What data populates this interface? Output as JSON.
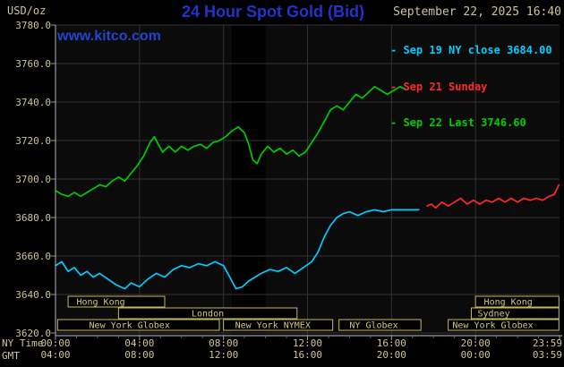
{
  "header": {
    "units": "USD/oz",
    "title": "24 Hour Spot Gold (Bid)",
    "datetime": "September 22, 2025 16:40",
    "watermark": "www.kitco.com",
    "legend_marker": "-",
    "legend": [
      {
        "label": "Sep 19 NY close 3684.00",
        "color": "#00CCFF"
      },
      {
        "label": "Sep 21 Sunday",
        "color": "#FF2A2A"
      },
      {
        "label": "Sep 22 Last 3746.60",
        "color": "#00CC00"
      }
    ]
  },
  "axes": {
    "ny_time_label": "NY Time",
    "gmt_label": "GMT"
  },
  "chart_data": {
    "type": "line",
    "title": "24 Hour Spot Gold (Bid)",
    "ylabel": "USD/oz",
    "xlim": [
      0,
      24
    ],
    "ylim": [
      3620,
      3780
    ],
    "grid": true,
    "legend_position": "top-right",
    "colors": {
      "grid": "#333333",
      "axis": "#999999",
      "tick_text": "#CDC49A",
      "session_box": "#C8B858",
      "plot_bg": "#0B0B0B"
    },
    "y_ticks": [
      {
        "value": 3780,
        "label": "3780.0"
      },
      {
        "value": 3760,
        "label": "3760.0"
      },
      {
        "value": 3740,
        "label": "3740.0"
      },
      {
        "value": 3720,
        "label": "3720.0"
      },
      {
        "value": 3700,
        "label": "3700.0"
      },
      {
        "value": 3680,
        "label": "3680.0"
      },
      {
        "value": 3660,
        "label": "3660.0"
      },
      {
        "value": 3640,
        "label": "3640.0"
      },
      {
        "value": 3620,
        "label": "3620.0"
      }
    ],
    "x_ticks": [
      {
        "hour": 0,
        "ny": "00:00",
        "gmt": "04:00"
      },
      {
        "hour": 4,
        "ny": "04:00",
        "gmt": "08:00"
      },
      {
        "hour": 8,
        "ny": "08:00",
        "gmt": "12:00"
      },
      {
        "hour": 12,
        "ny": "12:00",
        "gmt": "16:00"
      },
      {
        "hour": 16,
        "ny": "16:00",
        "gmt": "20:00"
      },
      {
        "hour": 20,
        "ny": "20:00",
        "gmt": "00:00"
      },
      {
        "hour": 24,
        "ny": "23:59",
        "gmt": "03:59"
      }
    ],
    "shade_bands": [
      {
        "start": 8.4,
        "end": 10.0,
        "color": "#000000"
      }
    ],
    "series": [
      {
        "name": "Sep 19 NY close",
        "color": "#00CCFF",
        "close": 3684.0,
        "points": [
          [
            0.0,
            3655
          ],
          [
            0.3,
            3657
          ],
          [
            0.6,
            3652
          ],
          [
            0.9,
            3654
          ],
          [
            1.2,
            3650
          ],
          [
            1.5,
            3652
          ],
          [
            1.8,
            3649
          ],
          [
            2.1,
            3651
          ],
          [
            2.5,
            3648
          ],
          [
            2.9,
            3645
          ],
          [
            3.3,
            3643
          ],
          [
            3.6,
            3646
          ],
          [
            4.0,
            3644
          ],
          [
            4.4,
            3648
          ],
          [
            4.8,
            3651
          ],
          [
            5.2,
            3649
          ],
          [
            5.6,
            3653
          ],
          [
            6.0,
            3655
          ],
          [
            6.4,
            3654
          ],
          [
            6.8,
            3656
          ],
          [
            7.2,
            3655
          ],
          [
            7.6,
            3657
          ],
          [
            8.0,
            3655
          ],
          [
            8.3,
            3649
          ],
          [
            8.6,
            3643
          ],
          [
            8.9,
            3644
          ],
          [
            9.2,
            3647
          ],
          [
            9.5,
            3649
          ],
          [
            9.8,
            3651
          ],
          [
            10.2,
            3653
          ],
          [
            10.6,
            3652
          ],
          [
            11.0,
            3654
          ],
          [
            11.4,
            3651
          ],
          [
            11.8,
            3654
          ],
          [
            12.2,
            3657
          ],
          [
            12.5,
            3662
          ],
          [
            12.8,
            3670
          ],
          [
            13.1,
            3676
          ],
          [
            13.4,
            3680
          ],
          [
            13.7,
            3682
          ],
          [
            14.0,
            3683
          ],
          [
            14.4,
            3681
          ],
          [
            14.8,
            3683
          ],
          [
            15.2,
            3684
          ],
          [
            15.6,
            3683
          ],
          [
            16.0,
            3684
          ],
          [
            16.5,
            3684
          ],
          [
            17.0,
            3684
          ],
          [
            17.3,
            3684
          ]
        ]
      },
      {
        "name": "Sep 21 Sunday",
        "color": "#FF2A2A",
        "points": [
          [
            17.7,
            3686
          ],
          [
            17.9,
            3687
          ],
          [
            18.1,
            3685
          ],
          [
            18.4,
            3688
          ],
          [
            18.7,
            3686
          ],
          [
            19.0,
            3688
          ],
          [
            19.3,
            3690
          ],
          [
            19.6,
            3687
          ],
          [
            19.9,
            3689
          ],
          [
            20.2,
            3687
          ],
          [
            20.5,
            3689
          ],
          [
            20.8,
            3688
          ],
          [
            21.1,
            3690
          ],
          [
            21.4,
            3688
          ],
          [
            21.7,
            3690
          ],
          [
            22.0,
            3688
          ],
          [
            22.3,
            3690
          ],
          [
            22.6,
            3689
          ],
          [
            22.9,
            3690
          ],
          [
            23.2,
            3689
          ],
          [
            23.5,
            3691
          ],
          [
            23.75,
            3692
          ],
          [
            23.97,
            3697
          ]
        ]
      },
      {
        "name": "Sep 22 Last",
        "color": "#00CC00",
        "last": 3746.6,
        "points": [
          [
            0.0,
            3694
          ],
          [
            0.3,
            3692
          ],
          [
            0.6,
            3691
          ],
          [
            0.9,
            3693
          ],
          [
            1.2,
            3691
          ],
          [
            1.5,
            3693
          ],
          [
            1.8,
            3695
          ],
          [
            2.1,
            3697
          ],
          [
            2.4,
            3696
          ],
          [
            2.7,
            3699
          ],
          [
            3.0,
            3701
          ],
          [
            3.3,
            3699
          ],
          [
            3.6,
            3703
          ],
          [
            3.9,
            3707
          ],
          [
            4.2,
            3712
          ],
          [
            4.5,
            3719
          ],
          [
            4.7,
            3722
          ],
          [
            4.9,
            3718
          ],
          [
            5.1,
            3714
          ],
          [
            5.4,
            3717
          ],
          [
            5.7,
            3714
          ],
          [
            6.0,
            3717
          ],
          [
            6.3,
            3715
          ],
          [
            6.6,
            3717
          ],
          [
            6.9,
            3718
          ],
          [
            7.2,
            3716
          ],
          [
            7.5,
            3719
          ],
          [
            7.8,
            3720
          ],
          [
            8.1,
            3722
          ],
          [
            8.4,
            3725
          ],
          [
            8.7,
            3727
          ],
          [
            9.0,
            3724
          ],
          [
            9.2,
            3718
          ],
          [
            9.4,
            3710
          ],
          [
            9.6,
            3708
          ],
          [
            9.8,
            3713
          ],
          [
            10.1,
            3717
          ],
          [
            10.4,
            3714
          ],
          [
            10.7,
            3716
          ],
          [
            11.0,
            3713
          ],
          [
            11.3,
            3715
          ],
          [
            11.6,
            3712
          ],
          [
            11.9,
            3714
          ],
          [
            12.2,
            3719
          ],
          [
            12.5,
            3724
          ],
          [
            12.8,
            3730
          ],
          [
            13.1,
            3736
          ],
          [
            13.4,
            3738
          ],
          [
            13.7,
            3736
          ],
          [
            14.0,
            3740
          ],
          [
            14.3,
            3744
          ],
          [
            14.6,
            3742
          ],
          [
            14.9,
            3745
          ],
          [
            15.2,
            3748
          ],
          [
            15.5,
            3746
          ],
          [
            15.8,
            3744
          ],
          [
            16.1,
            3746
          ],
          [
            16.4,
            3748
          ],
          [
            16.67,
            3746.6
          ]
        ]
      }
    ],
    "sessions": [
      {
        "row": 0,
        "start": 0.6,
        "end": 5.2,
        "label": "Hong Kong",
        "label_at": 1.0
      },
      {
        "row": 0,
        "start": 20.0,
        "end": 23.97,
        "label": "Hong Kong",
        "label_at": 20.4
      },
      {
        "row": 1,
        "start": 3.0,
        "end": 11.5,
        "label": "London",
        "align": "center"
      },
      {
        "row": 1,
        "start": 19.8,
        "end": 23.97,
        "label": "Sydney",
        "label_at": 20.1
      },
      {
        "row": 2,
        "start": 0.1,
        "end": 7.8,
        "label": "New York Globex",
        "label_at": 1.6
      },
      {
        "row": 2,
        "start": 8.0,
        "end": 13.2,
        "label": "New York NYMEX",
        "label_at": 8.55
      },
      {
        "row": 2,
        "start": 13.5,
        "end": 17.4,
        "label": "NY Globex",
        "label_at": 14.0
      },
      {
        "row": 2,
        "start": 18.7,
        "end": 23.97,
        "label": "New York Globex",
        "label_at": 18.9
      }
    ]
  }
}
